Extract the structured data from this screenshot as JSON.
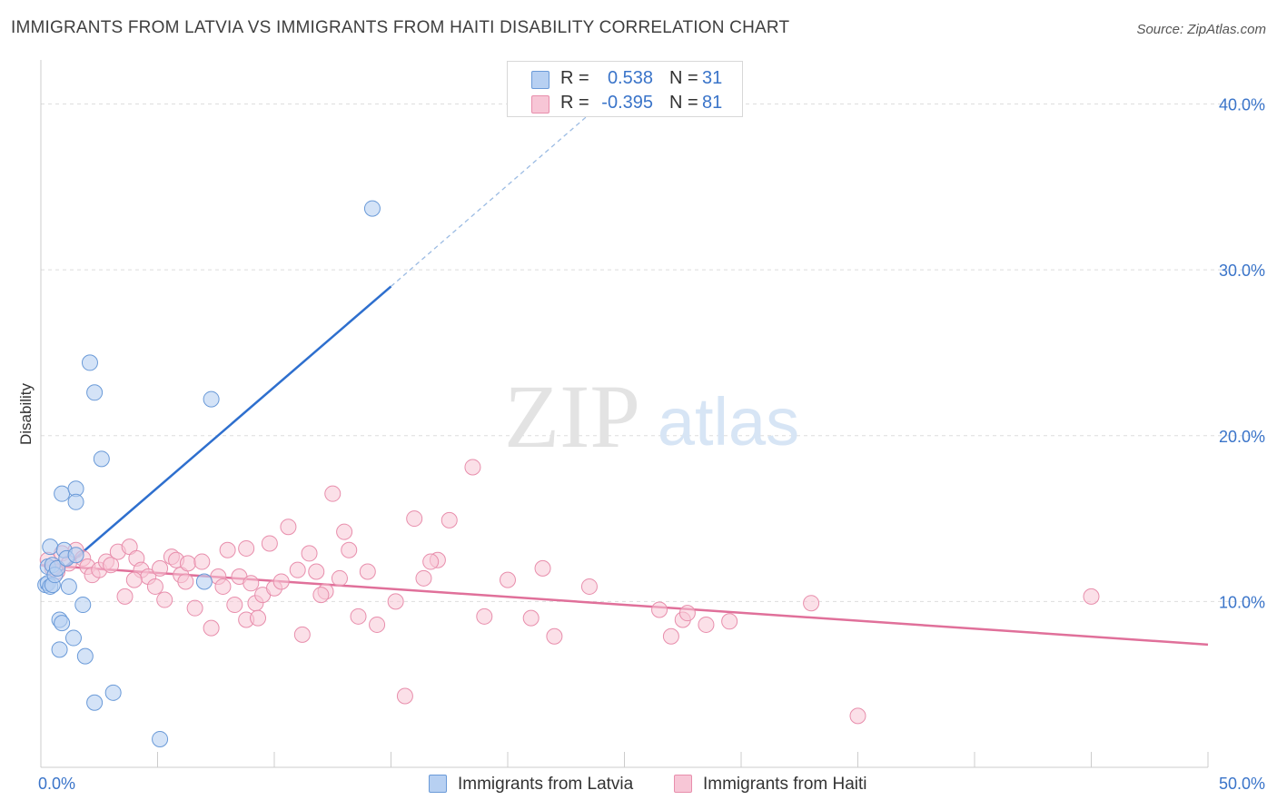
{
  "header": {
    "title": "IMMIGRANTS FROM LATVIA VS IMMIGRANTS FROM HAITI DISABILITY CORRELATION CHART",
    "source": "Source: ZipAtlas.com"
  },
  "watermark": {
    "zip": "ZIP",
    "atlas": "atlas"
  },
  "legend": {
    "rows": [
      {
        "r_label": "R =",
        "r_value": "0.538",
        "n_label": "N =",
        "n_value": "31"
      },
      {
        "r_label": "R =",
        "r_value": "-0.395",
        "n_label": "N =",
        "n_value": "81"
      }
    ],
    "series_labels": [
      "Immigrants from Latvia",
      "Immigrants from Haiti"
    ]
  },
  "colors": {
    "latvia_fill": "#b7d0f2",
    "latvia_stroke": "#6a9ad8",
    "latvia_line": "#2e6fce",
    "haiti_fill": "#f7c6d6",
    "haiti_stroke": "#e88eac",
    "haiti_line": "#e0709a",
    "axis_text": "#3a74c9",
    "grid": "#dddddd"
  },
  "chart_data": {
    "type": "scatter",
    "title": "IMMIGRANTS FROM LATVIA VS IMMIGRANTS FROM HAITI DISABILITY CORRELATION CHART",
    "xlabel": "",
    "ylabel": "Disability",
    "xlim": [
      0,
      50
    ],
    "ylim": [
      0,
      42
    ],
    "x_tick_labels": [
      "0.0%",
      "50.0%"
    ],
    "y_ticks": [
      10,
      20,
      30,
      40
    ],
    "y_tick_labels": [
      "10.0%",
      "20.0%",
      "30.0%",
      "40.0%"
    ],
    "grid": true,
    "legend_position": "top-center",
    "series": [
      {
        "name": "Immigrants from Latvia",
        "r": 0.538,
        "n": 31,
        "trend": {
          "x0": 0,
          "y0": 10.8,
          "x1": 15,
          "y1": 29,
          "dashed_to": [
            24,
            40
          ]
        },
        "points": [
          [
            0.2,
            11.0
          ],
          [
            0.3,
            11.1
          ],
          [
            0.4,
            10.9
          ],
          [
            0.5,
            11.0
          ],
          [
            0.3,
            12.1
          ],
          [
            0.5,
            12.2
          ],
          [
            0.4,
            13.3
          ],
          [
            0.6,
            11.6
          ],
          [
            0.7,
            12.0
          ],
          [
            1.0,
            13.1
          ],
          [
            1.1,
            12.6
          ],
          [
            1.2,
            10.9
          ],
          [
            1.5,
            12.8
          ],
          [
            1.8,
            9.8
          ],
          [
            0.9,
            16.5
          ],
          [
            1.5,
            16.8
          ],
          [
            1.5,
            16.0
          ],
          [
            2.6,
            18.6
          ],
          [
            2.1,
            24.4
          ],
          [
            2.3,
            22.6
          ],
          [
            7.3,
            22.2
          ],
          [
            14.2,
            33.7
          ],
          [
            0.8,
            8.9
          ],
          [
            0.9,
            8.7
          ],
          [
            1.4,
            7.8
          ],
          [
            0.8,
            7.1
          ],
          [
            1.9,
            6.7
          ],
          [
            2.3,
            3.9
          ],
          [
            3.1,
            4.5
          ],
          [
            5.1,
            1.7
          ],
          [
            7.0,
            11.2
          ]
        ]
      },
      {
        "name": "Immigrants from Haiti",
        "r": -0.395,
        "n": 81,
        "trend": {
          "x0": 0,
          "y0": 12.2,
          "x1": 50,
          "y1": 7.4
        },
        "points": [
          [
            0.3,
            12.5
          ],
          [
            0.5,
            12.0
          ],
          [
            0.7,
            11.8
          ],
          [
            0.9,
            12.9
          ],
          [
            1.2,
            12.3
          ],
          [
            1.5,
            13.1
          ],
          [
            1.8,
            12.6
          ],
          [
            2.0,
            12.1
          ],
          [
            2.2,
            11.6
          ],
          [
            2.5,
            11.9
          ],
          [
            2.8,
            12.4
          ],
          [
            3.0,
            12.2
          ],
          [
            3.3,
            13.0
          ],
          [
            3.6,
            10.3
          ],
          [
            3.8,
            13.3
          ],
          [
            4.1,
            12.6
          ],
          [
            4.3,
            11.9
          ],
          [
            4.6,
            11.5
          ],
          [
            4.9,
            10.9
          ],
          [
            5.1,
            12.0
          ],
          [
            5.3,
            10.1
          ],
          [
            5.6,
            12.7
          ],
          [
            5.8,
            12.5
          ],
          [
            6.0,
            11.6
          ],
          [
            6.3,
            12.3
          ],
          [
            6.6,
            9.6
          ],
          [
            6.9,
            12.4
          ],
          [
            7.3,
            8.4
          ],
          [
            7.6,
            11.5
          ],
          [
            7.8,
            10.9
          ],
          [
            8.0,
            13.1
          ],
          [
            8.3,
            9.8
          ],
          [
            8.5,
            11.5
          ],
          [
            8.8,
            8.9
          ],
          [
            9.0,
            11.1
          ],
          [
            9.2,
            9.9
          ],
          [
            9.5,
            10.4
          ],
          [
            9.8,
            13.5
          ],
          [
            10.0,
            10.8
          ],
          [
            10.3,
            11.2
          ],
          [
            10.6,
            14.5
          ],
          [
            11.0,
            11.9
          ],
          [
            11.2,
            8.0
          ],
          [
            11.5,
            12.9
          ],
          [
            11.8,
            11.8
          ],
          [
            12.2,
            10.6
          ],
          [
            12.5,
            16.5
          ],
          [
            12.8,
            11.4
          ],
          [
            13.2,
            13.1
          ],
          [
            13.6,
            9.1
          ],
          [
            14.0,
            11.8
          ],
          [
            14.4,
            8.6
          ],
          [
            15.2,
            10.0
          ],
          [
            15.6,
            4.3
          ],
          [
            16.0,
            15.0
          ],
          [
            16.4,
            11.4
          ],
          [
            17.0,
            12.5
          ],
          [
            17.5,
            14.9
          ],
          [
            18.5,
            18.1
          ],
          [
            19.0,
            9.1
          ],
          [
            20.0,
            11.3
          ],
          [
            21.0,
            9.0
          ],
          [
            21.5,
            12.0
          ],
          [
            22.0,
            7.9
          ],
          [
            23.5,
            10.9
          ],
          [
            26.5,
            9.5
          ],
          [
            27.0,
            7.9
          ],
          [
            27.5,
            8.9
          ],
          [
            28.5,
            8.6
          ],
          [
            29.5,
            8.8
          ],
          [
            33.0,
            9.9
          ],
          [
            35.0,
            3.1
          ],
          [
            45.0,
            10.3
          ],
          [
            8.8,
            13.2
          ],
          [
            9.3,
            9.0
          ],
          [
            12.0,
            10.4
          ],
          [
            13.0,
            14.2
          ],
          [
            16.7,
            12.4
          ],
          [
            6.2,
            11.2
          ],
          [
            4.0,
            11.3
          ],
          [
            27.7,
            9.3
          ]
        ]
      }
    ]
  }
}
